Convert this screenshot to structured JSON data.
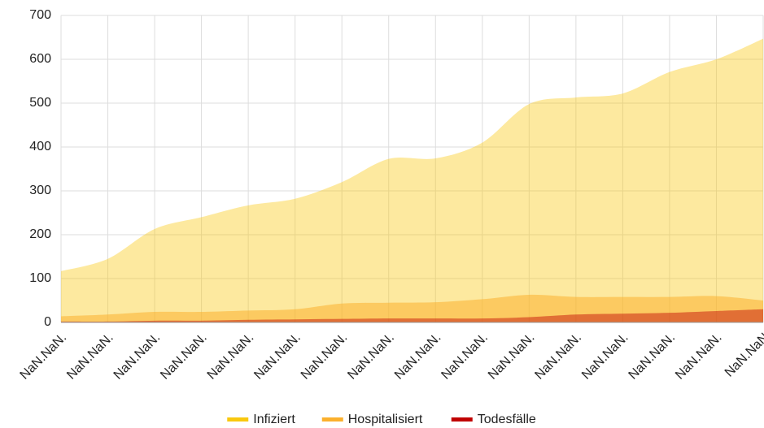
{
  "chart_data": {
    "type": "area",
    "categories": [
      "NaN.NaN.",
      "NaN.NaN.",
      "NaN.NaN.",
      "NaN.NaN.",
      "NaN.NaN.",
      "NaN.NaN.",
      "NaN.NaN.",
      "NaN.NaN.",
      "NaN.NaN.",
      "NaN.NaN.",
      "NaN.NaN.",
      "NaN.NaN.",
      "NaN.NaN.",
      "NaN.NaN.",
      "NaN.NaN.",
      "NaN.NaN"
    ],
    "series": [
      {
        "name": "Infiziert",
        "color": "#f9c80e",
        "values": [
          117,
          145,
          213,
          240,
          267,
          282,
          320,
          373,
          374,
          410,
          498,
          513,
          522,
          571,
          600,
          647
        ]
      },
      {
        "name": "Hospitalisiert",
        "color": "#fbb02d",
        "values": [
          14,
          18,
          24,
          24,
          27,
          30,
          43,
          45,
          46,
          53,
          63,
          58,
          58,
          58,
          60,
          50
        ]
      },
      {
        "name": "Todesfälle",
        "color": "#c00000",
        "values": [
          2,
          2,
          4,
          4,
          6,
          7,
          8,
          9,
          9,
          9,
          12,
          18,
          20,
          22,
          26,
          30
        ]
      }
    ],
    "ylim": [
      0,
      700
    ],
    "yticks": [
      0,
      100,
      200,
      300,
      400,
      500,
      600,
      700
    ],
    "grid": true,
    "legend": "bottom"
  }
}
